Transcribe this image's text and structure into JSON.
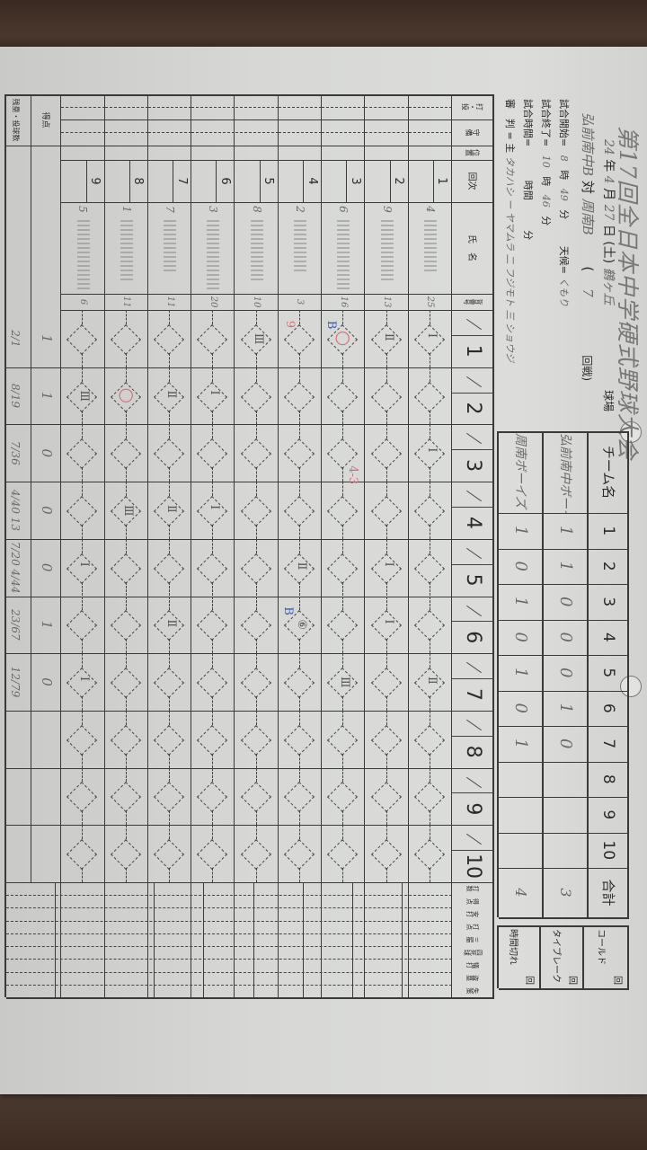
{
  "header": {
    "title": "第17回全日本中学硬式野球大会",
    "year": "24",
    "year_unit": "年",
    "month": "4",
    "month_unit": "月",
    "day": "27",
    "day_unit": "日",
    "weekday": "(土)",
    "venue": "鶴ヶ丘",
    "venue_label": "球場",
    "team_a": "弘前南中B",
    "vs": "対",
    "team_b": "周南B",
    "round_open": "(",
    "round": "7",
    "round_label": "回戦)",
    "start_label": "試合開始=",
    "start_hour": "8",
    "hour_unit": "時",
    "start_min": "49",
    "min_unit": "分",
    "weather_label": "天候=",
    "weather": "くもり",
    "end_label": "試合終了=",
    "end_hour": "10",
    "end_min": "46",
    "duration_label": "試合時間=",
    "duration_hour_unit": "時間",
    "duration_min_unit": "分",
    "umpire_label": "審　判 = 主",
    "umpires": "タカハシ ー ヤマムラ 二 フジモト 三 ショウジ"
  },
  "linescore": {
    "team_col_label": "チーム名",
    "innings": [
      "1",
      "2",
      "3",
      "4",
      "5",
      "6",
      "7",
      "8",
      "9",
      "10"
    ],
    "total_label": "合計",
    "teams": [
      {
        "name": "弘前南中ボーイズ",
        "runs": [
          "1",
          "1",
          "0",
          "0",
          "0",
          "1",
          "0",
          "",
          "",
          ""
        ],
        "total": "3"
      },
      {
        "name": "周南ボーイズ",
        "runs": [
          "1",
          "0",
          "1",
          "0",
          "1",
          "0",
          "1",
          "",
          "",
          ""
        ],
        "total": "4"
      }
    ],
    "side_box": [
      {
        "label": "コールド",
        "unit": "回"
      },
      {
        "label": "タイブレーク",
        "unit": "回"
      },
      {
        "label": "時間切れ",
        "unit": "回"
      }
    ]
  },
  "scorecard": {
    "headers": {
      "bat_throw": "打・投",
      "fielding": "守備",
      "position": "位置",
      "order": "回次",
      "name": "氏　名",
      "number": "背番号"
    },
    "innings": [
      "1",
      "2",
      "3",
      "4",
      "5",
      "6",
      "7",
      "8",
      "9",
      "10"
    ],
    "stats_headers": [
      "打数",
      "得点",
      "安打",
      "打点",
      "三振",
      "四死球",
      "犠打",
      "盗塁",
      "失策"
    ],
    "lineup": [
      {
        "order": "1",
        "pos": "4",
        "number": "25"
      },
      {
        "order": "2",
        "pos": "9",
        "number": "13"
      },
      {
        "order": "3",
        "pos": "6",
        "number": "16"
      },
      {
        "order": "4",
        "pos": "2",
        "number": "3"
      },
      {
        "order": "5",
        "pos": "8",
        "number": "10"
      },
      {
        "order": "6",
        "pos": "3",
        "number": "20"
      },
      {
        "order": "7",
        "pos": "7",
        "number": "11"
      },
      {
        "order": "8",
        "pos": "1",
        "number": "11"
      },
      {
        "order": "9",
        "pos": "5",
        "number": "6"
      }
    ],
    "summary_labels": [
      "得点",
      "残塁・投球数"
    ],
    "runs_row": [
      "1",
      "1",
      "0",
      "0",
      "0",
      "1",
      "0",
      "",
      "",
      ""
    ],
    "pitch_row": [
      "2/1",
      "8/19",
      "7/36",
      "4/40 13",
      "7/20 4/44",
      "23/67",
      "12/79",
      "",
      "",
      ""
    ],
    "marks": [
      {
        "row": 0,
        "inning": 0,
        "text": "Ⅰ",
        "color": "#555555"
      },
      {
        "row": 1,
        "inning": 0,
        "text": "Ⅱ",
        "color": "#555555"
      },
      {
        "row": 2,
        "inning": 0,
        "text": "○",
        "color": "#d96a7a"
      },
      {
        "row": 2,
        "inning": 0,
        "text": "B",
        "color": "#3b5bb8"
      },
      {
        "row": 3,
        "inning": 0,
        "text": "9",
        "color": "#d96a7a"
      },
      {
        "row": 4,
        "inning": 0,
        "text": "Ⅲ",
        "color": "#555555"
      },
      {
        "row": 5,
        "inning": 1,
        "text": "Ⅰ",
        "color": "#555555"
      },
      {
        "row": 6,
        "inning": 1,
        "text": "Ⅱ",
        "color": "#555555"
      },
      {
        "row": 7,
        "inning": 1,
        "text": "○",
        "color": "#d96a7a"
      },
      {
        "row": 8,
        "inning": 1,
        "text": "Ⅲ",
        "color": "#555555"
      },
      {
        "row": 0,
        "inning": 2,
        "text": "Ⅰ",
        "color": "#555555"
      },
      {
        "row": 2,
        "inning": 2,
        "text": "4-3",
        "color": "#d96a7a"
      },
      {
        "row": 5,
        "inning": 3,
        "text": "Ⅰ",
        "color": "#555555"
      },
      {
        "row": 6,
        "inning": 3,
        "text": "Ⅱ",
        "color": "#555555"
      },
      {
        "row": 7,
        "inning": 3,
        "text": "Ⅲ",
        "color": "#555555"
      },
      {
        "row": 1,
        "inning": 4,
        "text": "Ⅰ",
        "color": "#555555"
      },
      {
        "row": 3,
        "inning": 4,
        "text": "Ⅱ",
        "color": "#555555"
      },
      {
        "row": 8,
        "inning": 4,
        "text": "Ⅰ",
        "color": "#555555"
      },
      {
        "row": 1,
        "inning": 5,
        "text": "Ⅰ",
        "color": "#555555"
      },
      {
        "row": 3,
        "inning": 5,
        "text": "⑥",
        "color": "#555555"
      },
      {
        "row": 3,
        "inning": 5,
        "text": "B",
        "color": "#3b5bb8"
      },
      {
        "row": 6,
        "inning": 5,
        "text": "Ⅱ",
        "color": "#555555"
      },
      {
        "row": 2,
        "inning": 6,
        "text": "Ⅲ",
        "color": "#555555"
      },
      {
        "row": 0,
        "inning": 6,
        "text": "Ⅱ",
        "color": "#555555"
      },
      {
        "row": 8,
        "inning": 6,
        "text": "Ⅰ",
        "color": "#555555"
      }
    ]
  }
}
